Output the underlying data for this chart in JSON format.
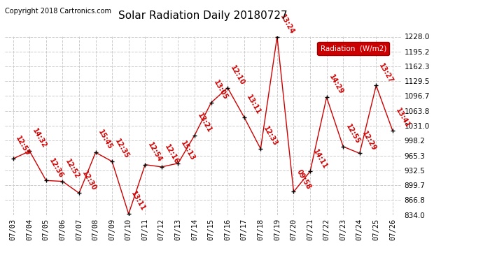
{
  "title": "Solar Radiation Daily 20180727",
  "copyright": "Copyright 2018 Cartronics.com",
  "legend_label": "Radiation  (W/m2)",
  "dates": [
    "07/03",
    "07/04",
    "07/05",
    "07/06",
    "07/07",
    "07/08",
    "07/09",
    "07/10",
    "07/11",
    "07/12",
    "07/13",
    "07/14",
    "07/15",
    "07/16",
    "07/17",
    "07/18",
    "07/19",
    "07/20",
    "07/21",
    "07/22",
    "07/23",
    "07/24",
    "07/25",
    "07/26"
  ],
  "values": [
    958,
    975,
    910,
    908,
    882,
    972,
    952,
    836,
    945,
    940,
    948,
    1010,
    1082,
    1115,
    1050,
    980,
    1228,
    885,
    930,
    1094,
    985,
    970,
    1120,
    1020
  ],
  "time_labels": [
    "12:59",
    "14:32",
    "12:36",
    "12:52",
    "12:30",
    "15:45",
    "12:35",
    "13:11",
    "12:54",
    "12:16",
    "15:13",
    "13:21",
    "13:05",
    "12:10",
    "13:11",
    "12:33",
    "13:24",
    "09:58",
    "14:11",
    "14:29",
    "12:55",
    "12:29",
    "13:27",
    "13:41"
  ],
  "ylim": [
    834.0,
    1228.0
  ],
  "yticks": [
    834.0,
    866.8,
    899.7,
    932.5,
    965.3,
    998.2,
    1031.0,
    1063.8,
    1096.7,
    1129.5,
    1162.3,
    1195.2,
    1228.0
  ],
  "line_color": "#cc0000",
  "marker_color": "#000000",
  "label_color": "#cc0000",
  "bg_color": "#ffffff",
  "grid_color": "#cccccc",
  "title_fontsize": 11,
  "copyright_fontsize": 7,
  "label_fontsize": 7,
  "legend_bg": "#cc0000",
  "legend_fg": "#ffffff"
}
